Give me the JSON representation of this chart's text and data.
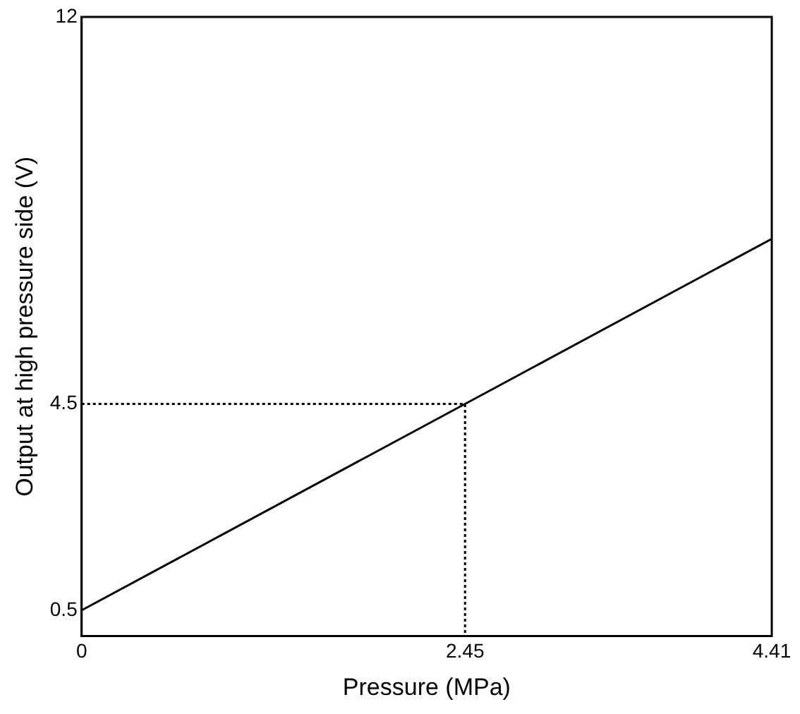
{
  "chart_data": {
    "type": "line",
    "xlabel": "Pressure (MPa)",
    "ylabel": "Output at high pressure side (V)",
    "xlim": [
      0,
      4.41
    ],
    "xticks": [
      0,
      2.45,
      4.41
    ],
    "ylim": [
      0,
      12
    ],
    "yticks": [
      0.5,
      4.5,
      12
    ],
    "grid": false,
    "legend": false,
    "marker": "none",
    "series": [
      {
        "color": "#000000",
        "x": [
          0,
          4.41
        ],
        "values": [
          0.5,
          7.7
        ],
        "line_style": "solid"
      },
      {
        "color": "#000000",
        "x": [
          0,
          2.45,
          2.45
        ],
        "values": [
          4.5,
          4.5,
          0
        ],
        "line_style": "dotted"
      }
    ]
  }
}
